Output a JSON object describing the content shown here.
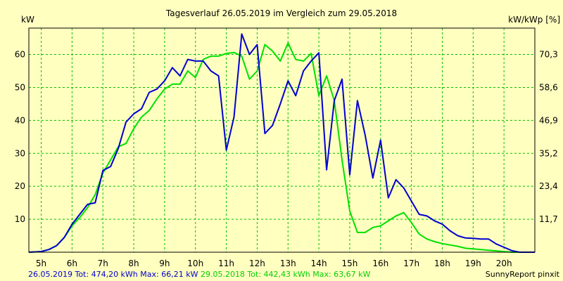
{
  "chart_data": {
    "type": "line",
    "title": "Tagesverlauf 26.05.2019 im Vergleich zum 29.05.2018",
    "ylabel_left": "kW",
    "ylabel_right": "kW/kWp [%]",
    "ylim": [
      0,
      68
    ],
    "xlim": [
      4.6,
      21
    ],
    "grid": true,
    "y_ticks": [
      10,
      20,
      30,
      40,
      50,
      60
    ],
    "y_ticks_right": [
      "11,7",
      "23,4",
      "35,2",
      "46,9",
      "58,6",
      "70,3"
    ],
    "x_ticks": [
      5,
      6,
      7,
      8,
      9,
      10,
      11,
      12,
      13,
      14,
      15,
      16,
      17,
      18,
      19,
      20
    ],
    "x_tick_labels": [
      "5h",
      "6h",
      "7h",
      "8h",
      "9h",
      "10h",
      "11h",
      "12h",
      "13h",
      "14h",
      "15h",
      "16h",
      "17h",
      "18h",
      "19h",
      "20h"
    ],
    "series": [
      {
        "name": "26.05.2019",
        "color": "#0000d0",
        "x": [
          4.6,
          5.0,
          5.25,
          5.5,
          5.75,
          6.0,
          6.25,
          6.5,
          6.75,
          7.0,
          7.25,
          7.5,
          7.75,
          8.0,
          8.25,
          8.5,
          8.75,
          9.0,
          9.25,
          9.5,
          9.75,
          10.0,
          10.25,
          10.5,
          10.75,
          11.0,
          11.25,
          11.5,
          11.75,
          12.0,
          12.25,
          12.5,
          12.75,
          13.0,
          13.25,
          13.5,
          13.75,
          14.0,
          14.25,
          14.5,
          14.75,
          15.0,
          15.25,
          15.5,
          15.75,
          16.0,
          16.25,
          16.5,
          16.75,
          17.0,
          17.25,
          17.5,
          17.75,
          18.0,
          18.25,
          18.5,
          18.75,
          19.0,
          19.25,
          19.5,
          19.75,
          20.0,
          20.25,
          20.5,
          20.75,
          21.0
        ],
        "y": [
          0.0,
          0.2,
          0.8,
          2.0,
          4.5,
          8.5,
          11.5,
          14.5,
          15.0,
          24.8,
          26.0,
          31.5,
          39.5,
          42.0,
          43.5,
          48.5,
          49.5,
          52.0,
          56.0,
          53.5,
          58.5,
          58.0,
          58.0,
          55.0,
          53.5,
          31.0,
          41.0,
          66.2,
          60.0,
          63.0,
          36.0,
          38.5,
          45.0,
          52.0,
          47.5,
          55.0,
          58.0,
          60.5,
          25.0,
          46.0,
          52.5,
          23.5,
          46.0,
          35.5,
          22.5,
          34.0,
          16.5,
          22.0,
          19.5,
          15.5,
          11.5,
          11.0,
          9.5,
          8.5,
          6.5,
          5.0,
          4.3,
          4.2,
          4.0,
          4.0,
          2.5,
          1.5,
          0.5,
          0.0,
          0.0,
          0.0
        ]
      },
      {
        "name": "29.05.2018",
        "color": "#00e000",
        "x": [
          4.6,
          5.0,
          5.25,
          5.5,
          5.75,
          6.0,
          6.25,
          6.5,
          6.75,
          7.0,
          7.25,
          7.5,
          7.75,
          8.0,
          8.25,
          8.5,
          8.75,
          9.0,
          9.25,
          9.5,
          9.75,
          10.0,
          10.25,
          10.5,
          10.75,
          11.0,
          11.25,
          11.5,
          11.75,
          12.0,
          12.25,
          12.5,
          12.75,
          13.0,
          13.25,
          13.5,
          13.75,
          14.0,
          14.25,
          14.5,
          14.75,
          15.0,
          15.25,
          15.5,
          15.75,
          16.0,
          16.25,
          16.5,
          16.75,
          17.0,
          17.25,
          17.5,
          17.75,
          18.0,
          18.25,
          18.5,
          18.75,
          19.0,
          19.25,
          19.5,
          19.75,
          20.0,
          20.25,
          20.5,
          20.75,
          21.0
        ],
        "y": [
          0.0,
          0.2,
          0.8,
          2.0,
          4.5,
          8.0,
          10.5,
          13.5,
          17.5,
          24.0,
          28.0,
          32.0,
          33.0,
          37.5,
          41.0,
          43.0,
          46.5,
          49.5,
          51.0,
          51.0,
          55.0,
          53.0,
          58.5,
          59.5,
          59.5,
          60.3,
          60.6,
          59.5,
          52.5,
          55.0,
          63.0,
          61.0,
          58.0,
          63.5,
          58.5,
          58.0,
          60.3,
          47.5,
          53.5,
          46.0,
          28.0,
          12.5,
          6.0,
          6.0,
          7.5,
          8.0,
          9.5,
          11.0,
          12.0,
          9.0,
          5.5,
          4.0,
          3.2,
          2.6,
          2.2,
          1.8,
          1.2,
          1.0,
          0.8,
          0.6,
          0.4,
          0.2,
          0.0,
          0.0,
          0.0,
          0.0
        ]
      }
    ]
  },
  "footer": {
    "series1_text": "26.05.2019 Tot: 474,20 kWh Max: 66,21 kW",
    "series2_text": "29.05.2018 Tot: 442,43 kWh Max: 63,67 kW",
    "brand": "SunnyReport pinxit"
  }
}
